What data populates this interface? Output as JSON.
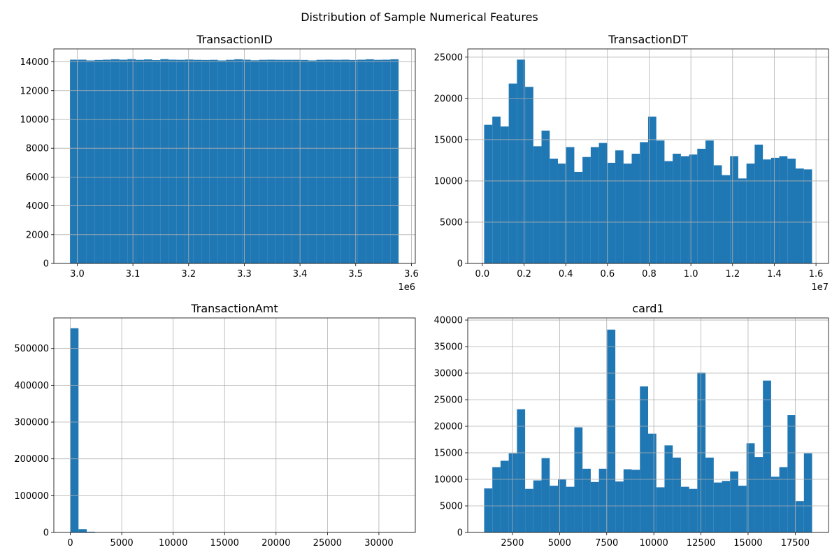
{
  "figure": {
    "suptitle": "Distribution of Sample Numerical Features",
    "bar_color": "#1f77b4",
    "background": "#ffffff",
    "grid_color": "#b0b0b0"
  },
  "chart_data": [
    {
      "type": "bar",
      "title": "TransactionID",
      "xlabel": "",
      "ylabel": "",
      "x_offset_label": "1e6",
      "bins": 40,
      "bin_range": [
        2.987,
        3.577
      ],
      "xlim": [
        2.958,
        3.607
      ],
      "ylim": [
        0,
        14900
      ],
      "xticks": [
        3.0,
        3.1,
        3.2,
        3.3,
        3.4,
        3.5,
        3.6
      ],
      "xtick_labels": [
        "3.0",
        "3.1",
        "3.2",
        "3.3",
        "3.4",
        "3.5",
        "3.6"
      ],
      "yticks": [
        0,
        2000,
        4000,
        6000,
        8000,
        10000,
        12000,
        14000
      ],
      "ytick_labels": [
        "0",
        "2000",
        "4000",
        "6000",
        "8000",
        "10000",
        "12000",
        "14000"
      ],
      "values": [
        14150,
        14150,
        14100,
        14130,
        14150,
        14180,
        14150,
        14190,
        14140,
        14170,
        14120,
        14190,
        14150,
        14140,
        14160,
        14140,
        14130,
        14140,
        14100,
        14140,
        14180,
        14150,
        14110,
        14140,
        14150,
        14140,
        14140,
        14140,
        14130,
        14100,
        14140,
        14150,
        14140,
        14150,
        14130,
        14150,
        14180,
        14140,
        14150,
        14180
      ],
      "grid": true
    },
    {
      "type": "bar",
      "title": "TransactionDT",
      "xlabel": "",
      "ylabel": "",
      "x_offset_label": "1e7",
      "bins": 40,
      "bin_range": [
        0.0086,
        1.5811
      ],
      "xlim": [
        -0.07,
        1.66
      ],
      "ylim": [
        0,
        26000
      ],
      "xticks": [
        0.0,
        0.2,
        0.4,
        0.6,
        0.8,
        1.0,
        1.2,
        1.4,
        1.6
      ],
      "xtick_labels": [
        "0.0",
        "0.2",
        "0.4",
        "0.6",
        "0.8",
        "1.0",
        "1.2",
        "1.4",
        "1.6"
      ],
      "yticks": [
        0,
        5000,
        10000,
        15000,
        20000,
        25000
      ],
      "ytick_labels": [
        "0",
        "5000",
        "10000",
        "15000",
        "20000",
        "25000"
      ],
      "values": [
        16800,
        17800,
        16600,
        21800,
        24700,
        21400,
        14200,
        16100,
        12700,
        12100,
        14100,
        11100,
        12900,
        14100,
        14600,
        12200,
        13700,
        12100,
        13300,
        14700,
        17800,
        14900,
        12400,
        13300,
        13000,
        13200,
        13900,
        14900,
        11900,
        10700,
        13000,
        10300,
        12100,
        14400,
        12600,
        12800,
        13000,
        12700,
        11500,
        11400
      ],
      "grid": true
    },
    {
      "type": "bar",
      "title": "TransactionAmt",
      "xlabel": "",
      "ylabel": "",
      "x_offset_label": "",
      "bins": 40,
      "bin_range": [
        0.25,
        31937.4
      ],
      "xlim": [
        -1600,
        33540
      ],
      "ylim": [
        0,
        583000
      ],
      "xticks": [
        0,
        5000,
        10000,
        15000,
        20000,
        25000,
        30000
      ],
      "xtick_labels": [
        "0",
        "5000",
        "10000",
        "15000",
        "20000",
        "25000",
        "30000"
      ],
      "yticks": [
        0,
        100000,
        200000,
        300000,
        400000,
        500000
      ],
      "ytick_labels": [
        "0",
        "100000",
        "200000",
        "300000",
        "400000",
        "500000"
      ],
      "values": [
        555000,
        9000,
        2000,
        500,
        200,
        100,
        50,
        30,
        20,
        10,
        5,
        5,
        2,
        2,
        1,
        1,
        1,
        1,
        0,
        0,
        0,
        0,
        0,
        0,
        0,
        0,
        0,
        0,
        0,
        0,
        0,
        0,
        0,
        0,
        0,
        0,
        0,
        0,
        0,
        2
      ],
      "grid": true
    },
    {
      "type": "bar",
      "title": "card1",
      "xlabel": "",
      "ylabel": "",
      "x_offset_label": "",
      "bins": 40,
      "bin_range": [
        1000,
        18396
      ],
      "xlim": [
        130,
        19266
      ],
      "ylim": [
        0,
        40400
      ],
      "xticks": [
        2500,
        5000,
        7500,
        10000,
        12500,
        15000,
        17500
      ],
      "xtick_labels": [
        "2500",
        "5000",
        "7500",
        "10000",
        "12500",
        "15000",
        "17500"
      ],
      "yticks": [
        0,
        5000,
        10000,
        15000,
        20000,
        25000,
        30000,
        35000,
        40000
      ],
      "ytick_labels": [
        "0",
        "5000",
        "10000",
        "15000",
        "20000",
        "25000",
        "30000",
        "35000",
        "40000"
      ],
      "values": [
        8300,
        12300,
        13500,
        14900,
        23200,
        8200,
        9800,
        14000,
        8800,
        10000,
        8600,
        19800,
        12000,
        9500,
        12000,
        38200,
        9600,
        11900,
        11800,
        27500,
        18600,
        8500,
        16400,
        14100,
        8600,
        8200,
        30100,
        14100,
        9400,
        9700,
        11500,
        8800,
        16800,
        14200,
        28600,
        10500,
        12300,
        22100,
        5900,
        14900
      ],
      "grid": true
    }
  ]
}
